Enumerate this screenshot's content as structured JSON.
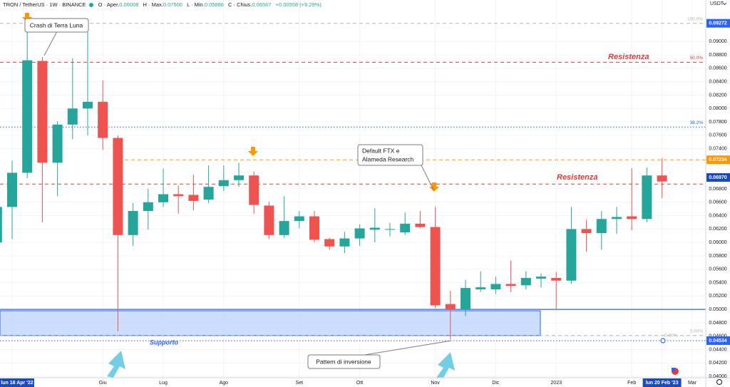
{
  "chart_data": {
    "type": "candlestick",
    "title": "TRON / TetherUS · 1W · BINANCE",
    "ohlc_legend": [
      {
        "key": "O",
        "label": "Aper.",
        "value": "0.06008"
      },
      {
        "key": "H",
        "label": "Max.",
        "value": "0.07500"
      },
      {
        "key": "L",
        "label": "Min.",
        "value": "0.05886"
      },
      {
        "key": "C",
        "label": "Chius.",
        "value": "0.06567"
      }
    ],
    "change": "+0.00558 (+9.29%)",
    "currency": "USDT",
    "categories": [
      null,
      "lun 18 Apr '22",
      null,
      null,
      null,
      null,
      null,
      "Giu",
      null,
      null,
      null,
      "Lug",
      null,
      null,
      null,
      "Ago",
      null,
      null,
      null,
      null,
      "Set",
      null,
      null,
      null,
      "Ott",
      null,
      null,
      null,
      null,
      "Nov",
      null,
      null,
      null,
      "Dic",
      null,
      null,
      null,
      "2023",
      null,
      null,
      null,
      null,
      "Feb",
      null,
      "lun 20 Feb '23",
      null,
      "Mar"
    ],
    "open": [
      0.06,
      0.0653,
      0.0704,
      0.0871,
      0.0719,
      0.0776,
      0.08,
      0.081,
      0.0756,
      0.0611,
      0.0647,
      0.066,
      0.0672,
      0.0671,
      0.0664,
      0.0684,
      0.0693,
      0.07,
      0.0655,
      0.0611,
      0.0632,
      0.0639,
      0.0605,
      0.0594,
      0.0606,
      0.0619,
      0.0619,
      0.0615,
      0.0628,
      0.0623,
      0.0508,
      0.05,
      0.053,
      0.053,
      0.0538,
      0.0536,
      0.0546,
      0.0547,
      0.0543,
      0.062,
      0.0614,
      0.0635,
      0.0639,
      0.0635,
      0.07,
      null,
      null
    ],
    "high": [
      0.0656,
      0.0722,
      0.0914,
      0.0877,
      0.0781,
      0.0875,
      0.0914,
      0.0842,
      0.076,
      0.0659,
      0.068,
      0.071,
      0.0685,
      0.0701,
      0.0715,
      0.0715,
      0.0719,
      0.0706,
      0.0661,
      0.0669,
      0.0647,
      0.0647,
      0.0607,
      0.0616,
      0.0627,
      0.0651,
      0.0629,
      0.0645,
      0.0647,
      0.0653,
      0.0528,
      0.0544,
      0.0557,
      0.0549,
      0.0573,
      0.0557,
      0.0554,
      0.0556,
      0.0653,
      0.0634,
      0.0647,
      0.0653,
      0.0711,
      0.0712,
      0.0726,
      null,
      null
    ],
    "low": [
      0.0597,
      0.0605,
      0.0696,
      0.063,
      0.0669,
      0.0754,
      0.076,
      0.0738,
      0.0467,
      0.0595,
      0.0619,
      0.0653,
      0.0643,
      0.0648,
      0.0659,
      0.0677,
      0.0683,
      0.0643,
      0.0605,
      0.0607,
      0.0621,
      0.06,
      0.0589,
      0.0584,
      0.0595,
      0.06,
      0.0609,
      0.0611,
      0.0621,
      0.0502,
      0.0455,
      0.049,
      0.0526,
      0.0523,
      0.0526,
      0.053,
      0.0533,
      0.0501,
      0.0538,
      0.0586,
      0.0589,
      0.0613,
      0.0618,
      0.063,
      0.0666,
      null,
      null
    ],
    "close": [
      0.0653,
      0.0704,
      0.0872,
      0.0719,
      0.0776,
      0.08,
      0.081,
      0.0756,
      0.0611,
      0.0647,
      0.066,
      0.0672,
      0.0669,
      0.0662,
      0.0683,
      0.0693,
      0.07,
      0.0656,
      0.0611,
      0.0632,
      0.0639,
      0.0604,
      0.0594,
      0.0606,
      0.0621,
      0.0622,
      0.062,
      0.0628,
      0.0623,
      0.0506,
      0.05,
      0.0532,
      0.0533,
      0.0538,
      0.0535,
      0.0547,
      0.0549,
      0.0543,
      0.062,
      0.0614,
      0.0635,
      0.0638,
      0.0635,
      0.07,
      0.0691,
      null,
      null
    ],
    "up_color": "#26a69a",
    "down_color": "#ef5350",
    "ylim": [
      0.0398,
      0.0962
    ],
    "yticks": [
      {
        "value": 0.09,
        "label": "0.09000"
      },
      {
        "value": 0.088,
        "label": "0.08800"
      },
      {
        "value": 0.086,
        "label": "0.08600"
      },
      {
        "value": 0.084,
        "label": "0.08400"
      },
      {
        "value": 0.082,
        "label": "0.08200"
      },
      {
        "value": 0.08,
        "label": "0.08000"
      },
      {
        "value": 0.078,
        "label": "0.07800"
      },
      {
        "value": 0.076,
        "label": "0.07600"
      },
      {
        "value": 0.074,
        "label": "0.07400"
      },
      {
        "value": 0.068,
        "label": "0.06800"
      },
      {
        "value": 0.066,
        "label": "0.06600"
      },
      {
        "value": 0.064,
        "label": "0.06400"
      },
      {
        "value": 0.062,
        "label": "0.06200"
      },
      {
        "value": 0.06,
        "label": "0.06000"
      },
      {
        "value": 0.058,
        "label": "0.05800"
      },
      {
        "value": 0.056,
        "label": "0.05600"
      },
      {
        "value": 0.054,
        "label": "0.05400"
      },
      {
        "value": 0.052,
        "label": "0.05200"
      },
      {
        "value": 0.05,
        "label": "0.05000"
      },
      {
        "value": 0.048,
        "label": "0.04800"
      },
      {
        "value": 0.046,
        "label": "0.04600"
      },
      {
        "value": 0.044,
        "label": "0.04400"
      },
      {
        "value": 0.042,
        "label": "0.04200"
      },
      {
        "value": 0.04,
        "label": "0.04000"
      }
    ],
    "grid": true,
    "levels": [
      {
        "value": 0.09272,
        "color": "#b2b5be",
        "style": "dashed",
        "label": "100.0%"
      },
      {
        "value": 0.0869,
        "color": "#e53935",
        "style": "dashed",
        "label": "50.0%"
      },
      {
        "value": 0.07723,
        "color": "#2962ff",
        "style": "dotted",
        "label": "38.2%"
      },
      {
        "value": 0.07234,
        "color": "#ff9800",
        "style": "dashed"
      },
      {
        "value": 0.06872,
        "color": "#e53935",
        "style": "dashed"
      },
      {
        "value": 0.05,
        "color": "#2962ff",
        "style": "solid"
      },
      {
        "value": 0.0461,
        "color": "#b2b5be",
        "style": "dashed",
        "label": "0.00%"
      },
      {
        "value": 0.04534,
        "color": "#2962ff",
        "style": "dotted"
      }
    ],
    "support_zone": {
      "top": 0.0498,
      "bottom": 0.0461,
      "color": "#bbd3fb"
    },
    "price_tags": [
      {
        "value": 0.09272,
        "label": "0.09272",
        "color": "#2962ff"
      },
      {
        "value": 0.07234,
        "label": "0.07234",
        "color": "#ff9800"
      },
      {
        "value": 0.0697,
        "label": "0.06970",
        "color": "#1848cc"
      },
      {
        "value": 0.04534,
        "label": "0.04534",
        "color": "#2962ff"
      }
    ],
    "annotations": [
      {
        "text": "Crash di Terra Luna"
      },
      {
        "text": "Default FTX e"
      },
      {
        "text": "Alameda Research"
      },
      {
        "text": "Pattern di inversione"
      },
      {
        "text": "Resistenza",
        "color": "#e53935"
      },
      {
        "text": "Resistenza",
        "color": "#e53935"
      },
      {
        "text": "Supporto",
        "color": "#2962ff"
      },
      {
        "text": "0.00%",
        "color": "#b2b5be"
      }
    ]
  }
}
